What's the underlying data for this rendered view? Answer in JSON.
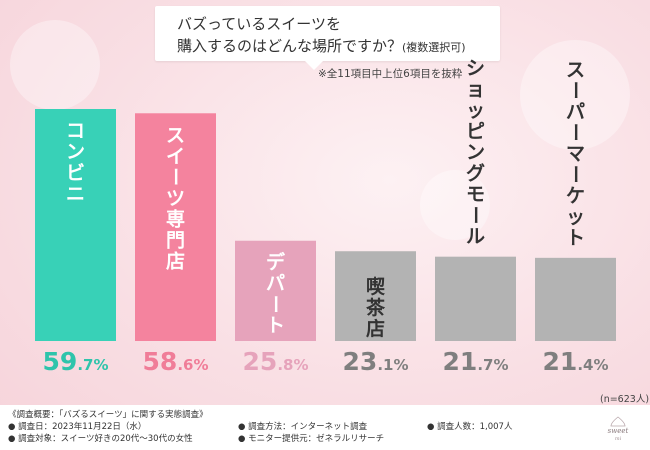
{
  "title": {
    "line1": "バズっているスイーツを",
    "line2": "購入するのはどんな場所ですか？",
    "suffix": "(複数選択可)"
  },
  "note": "※全11項目中上位6項目を抜粋",
  "n_label": "(n=623人)",
  "colors": {
    "bar_1": "#38d1b7",
    "bar_2": "#f4839e",
    "bar_3": "#e6a3bb",
    "bar_other": "#b3b3b3",
    "value_1": "#2fc4ab",
    "value_2": "#f07d98",
    "value_3": "#e6a3bb",
    "value_other": "#7f7f7f"
  },
  "chart_data": {
    "type": "bar",
    "categories": [
      "コンビニ",
      "スイーツ専門店",
      "デパート",
      "喫茶店",
      "ショッピングモール",
      "スーパーマーケット"
    ],
    "values": [
      59.7,
      58.6,
      25.8,
      23.1,
      21.7,
      21.4
    ],
    "value_labels": [
      {
        "int": "59",
        "dec": ".7%"
      },
      {
        "int": "58",
        "dec": ".6%"
      },
      {
        "int": "25",
        "dec": ".8%"
      },
      {
        "int": "23",
        "dec": ".1%"
      },
      {
        "int": "21",
        "dec": ".7%"
      },
      {
        "int": "21",
        "dec": ".4%"
      }
    ],
    "unit": "%",
    "ylim": [
      0,
      59.7
    ]
  },
  "footer": {
    "heading": "《調査概要：「バズるスイーツ」に関する実態調査》",
    "date": "● 調査日：2023年11月22日（水）",
    "target": "● 調査対象：スイーツ好きの20代～30代の女性",
    "method": "● 調査方法：インターネット調査",
    "provider": "● モニター提供元：ゼネラルリサーチ",
    "count": "● 調査人数：1,007人"
  },
  "logo": {
    "word": "sweet",
    "sub": "mi"
  }
}
